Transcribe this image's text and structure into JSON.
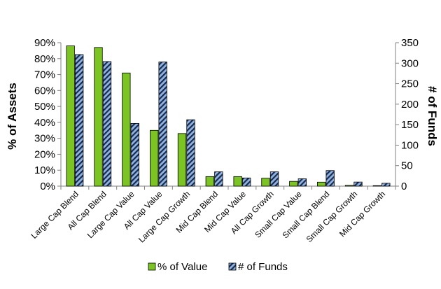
{
  "chart_data": {
    "type": "bar",
    "categories": [
      "Large Cap Blend",
      "All Cap Blend",
      "Large Cap Value",
      "All Cap Value",
      "Large Cap Growth",
      "Mid Cap Blend",
      "Mid Cap Value",
      "All Cap Growth",
      "Small Cap Value",
      "Small Cap Blend",
      "Small Cap Growth",
      "Mid Cap Growth"
    ],
    "series": [
      {
        "name": "% of Value",
        "axis": "left",
        "color": "#7cc424",
        "values": [
          88,
          87,
          71,
          35,
          33,
          6,
          6,
          5,
          3,
          2.5,
          0.5,
          0.3
        ]
      },
      {
        "name": "# of Funds",
        "axis": "right",
        "color": "#8fb4e3",
        "pattern": "diagonal-hatch",
        "values": [
          321,
          304,
          153,
          303,
          162,
          35,
          20,
          35,
          18,
          38,
          10,
          7
        ]
      }
    ],
    "ylabel": "% of Assets",
    "y2label": "# of Funds",
    "ylim": [
      0,
      90
    ],
    "y2lim": [
      0,
      350
    ],
    "yticks": [
      "0%",
      "10%",
      "20%",
      "30%",
      "40%",
      "50%",
      "60%",
      "70%",
      "80%",
      "90%"
    ],
    "y2ticks": [
      "0",
      "50",
      "100",
      "150",
      "200",
      "250",
      "300",
      "350"
    ],
    "legend": "bottom",
    "grid": false
  }
}
